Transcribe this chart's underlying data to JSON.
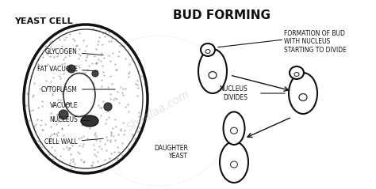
{
  "bg_color": "#ffffff",
  "title": "BUD FORMING",
  "title_fontsize": 11,
  "title_fontweight": "bold",
  "yeast_label": "YEAST CELL",
  "watermark": "Shaalaa.com",
  "outline_color": "#111111",
  "arrow_color": "#111111"
}
